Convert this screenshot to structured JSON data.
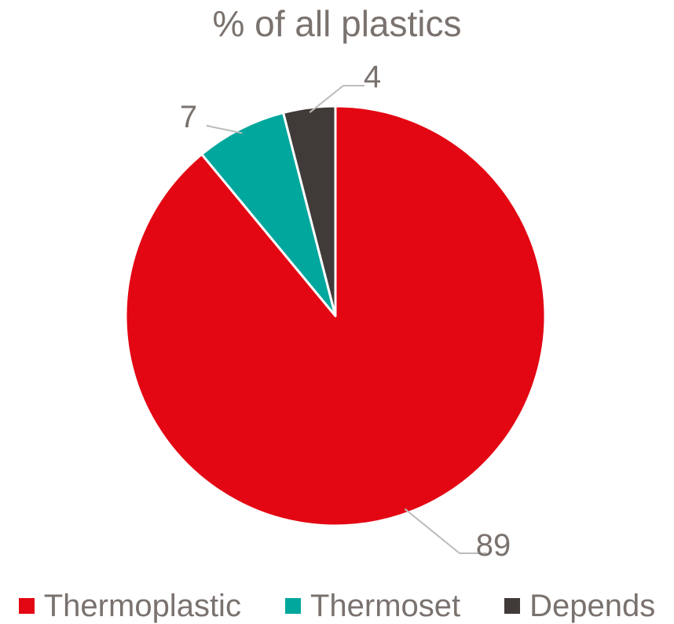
{
  "chart_data": {
    "type": "pie",
    "title": "% of all plastics",
    "categories": [
      "Thermoplastic",
      "Thermoset",
      "Depends"
    ],
    "values": [
      89,
      7,
      4
    ],
    "colors": [
      "#e30613",
      "#00a79d",
      "#403a38"
    ],
    "data_labels": [
      "89",
      "7",
      "4"
    ],
    "start_angle_deg": 0,
    "direction": "clockwise",
    "legend_position": "bottom"
  }
}
